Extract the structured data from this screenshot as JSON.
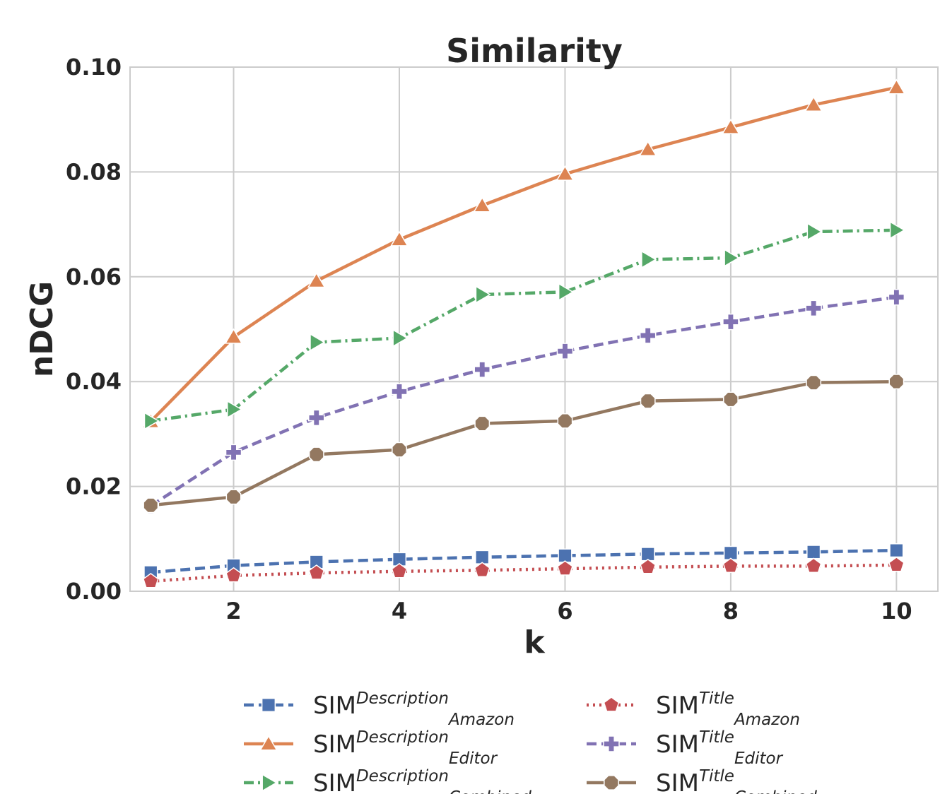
{
  "chart_data": {
    "type": "line",
    "title": "Similarity",
    "xlabel": "k",
    "ylabel": "nDCG",
    "xlim": [
      0.75,
      10.5
    ],
    "ylim": [
      0.0,
      0.1
    ],
    "xticks": [
      2,
      4,
      6,
      8,
      10
    ],
    "xtick_labels": [
      "2",
      "4",
      "6",
      "8",
      "10"
    ],
    "yticks": [
      0.0,
      0.02,
      0.04,
      0.06,
      0.08,
      0.1
    ],
    "ytick_labels": [
      "0.00",
      "0.02",
      "0.04",
      "0.06",
      "0.08",
      "0.10"
    ],
    "grid": true,
    "legend_position": "bottom, outside plot, two columns",
    "x": [
      1,
      2,
      3,
      4,
      5,
      6,
      7,
      8,
      9,
      10
    ],
    "series": [
      {
        "name": "SIM",
        "sup": "Description",
        "sub": "Amazon",
        "values": [
          0.0036,
          0.0049,
          0.0056,
          0.0061,
          0.0065,
          0.0068,
          0.0071,
          0.0073,
          0.0075,
          0.0078
        ],
        "color": "#4c72b0",
        "dash": "dashed",
        "marker": "square"
      },
      {
        "name": "SIM",
        "sup": "Description",
        "sub": "Editor",
        "values": [
          0.0324,
          0.0485,
          0.0592,
          0.0671,
          0.0736,
          0.0796,
          0.0843,
          0.0885,
          0.0928,
          0.0961
        ],
        "color": "#dd8452",
        "dash": "solid",
        "marker": "triangle-up"
      },
      {
        "name": "SIM",
        "sup": "Description",
        "sub": "Combined",
        "values": [
          0.0325,
          0.0347,
          0.0475,
          0.0483,
          0.0566,
          0.0571,
          0.0633,
          0.0636,
          0.0686,
          0.0689
        ],
        "color": "#55a868",
        "dash": "dashdot",
        "marker": "triangle-right"
      },
      {
        "name": "SIM",
        "sup": "Title",
        "sub": "Amazon",
        "values": [
          0.0019,
          0.003,
          0.0035,
          0.0038,
          0.004,
          0.0043,
          0.0046,
          0.0048,
          0.0048,
          0.005
        ],
        "color": "#c44e52",
        "dash": "dotted",
        "marker": "pentagon"
      },
      {
        "name": "SIM",
        "sup": "Title",
        "sub": "Editor",
        "values": [
          0.0163,
          0.0265,
          0.0331,
          0.0381,
          0.0423,
          0.0458,
          0.0488,
          0.0514,
          0.054,
          0.0561
        ],
        "color": "#8172b3",
        "dash": "dashed",
        "marker": "plus"
      },
      {
        "name": "SIM",
        "sup": "Title",
        "sub": "Combined",
        "values": [
          0.0164,
          0.018,
          0.0261,
          0.027,
          0.032,
          0.0325,
          0.0363,
          0.0366,
          0.0398,
          0.04
        ],
        "color": "#937860",
        "dash": "solid",
        "marker": "octagon"
      }
    ]
  }
}
